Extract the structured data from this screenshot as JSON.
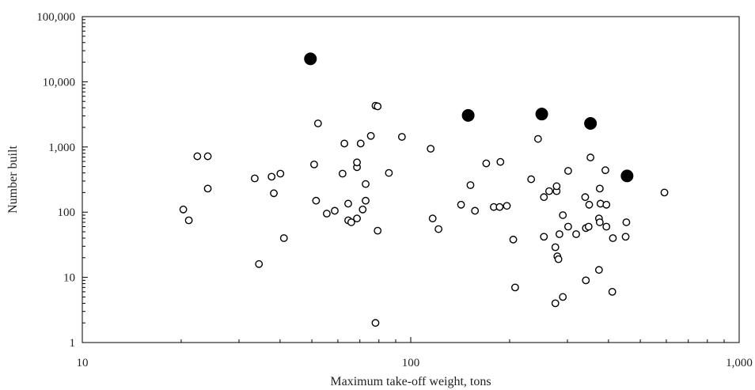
{
  "chart_data": {
    "type": "scatter",
    "title": "",
    "xlabel": "Maximum take-off weight, tons",
    "ylabel": "Number built",
    "x_scale": "log",
    "y_scale": "log",
    "xlim": [
      10,
      1000
    ],
    "ylim": [
      1,
      100000
    ],
    "x_ticks": [
      10,
      100,
      1000
    ],
    "x_tick_labels": [
      "10",
      "100",
      "1,000"
    ],
    "y_ticks": [
      1,
      10,
      100,
      1000,
      10000,
      100000
    ],
    "y_tick_labels": [
      "1",
      "10",
      "100",
      "1,000",
      "10,000",
      "100,000"
    ],
    "grid": false,
    "legend": "none",
    "colors": {
      "filled_marker": "#000000",
      "open_marker_stroke": "#000000",
      "open_marker_fill": "#ffffff"
    },
    "series": [
      {
        "marker": "open-circle",
        "points": [
          {
            "x": 20.3,
            "y": 110
          },
          {
            "x": 21.1,
            "y": 75
          },
          {
            "x": 22.4,
            "y": 720
          },
          {
            "x": 24.1,
            "y": 720
          },
          {
            "x": 24.1,
            "y": 230
          },
          {
            "x": 33.5,
            "y": 330
          },
          {
            "x": 34.5,
            "y": 16
          },
          {
            "x": 37.7,
            "y": 350
          },
          {
            "x": 38.3,
            "y": 195
          },
          {
            "x": 40.1,
            "y": 390
          },
          {
            "x": 41.1,
            "y": 40
          },
          {
            "x": 50.8,
            "y": 540
          },
          {
            "x": 51.5,
            "y": 150
          },
          {
            "x": 52.2,
            "y": 2300
          },
          {
            "x": 55.5,
            "y": 95
          },
          {
            "x": 58.7,
            "y": 105
          },
          {
            "x": 62.0,
            "y": 390
          },
          {
            "x": 62.8,
            "y": 1130
          },
          {
            "x": 64.5,
            "y": 75
          },
          {
            "x": 64.5,
            "y": 135
          },
          {
            "x": 65.9,
            "y": 70
          },
          {
            "x": 68.6,
            "y": 80
          },
          {
            "x": 68.6,
            "y": 490
          },
          {
            "x": 68.6,
            "y": 580
          },
          {
            "x": 70.4,
            "y": 1130
          },
          {
            "x": 71.4,
            "y": 110
          },
          {
            "x": 72.9,
            "y": 150
          },
          {
            "x": 72.9,
            "y": 270
          },
          {
            "x": 75.6,
            "y": 1480
          },
          {
            "x": 78.1,
            "y": 2
          },
          {
            "x": 78.1,
            "y": 4300
          },
          {
            "x": 79.3,
            "y": 4200
          },
          {
            "x": 79.3,
            "y": 52
          },
          {
            "x": 85.8,
            "y": 400
          },
          {
            "x": 94.0,
            "y": 1430
          },
          {
            "x": 115.0,
            "y": 940
          },
          {
            "x": 116.6,
            "y": 80
          },
          {
            "x": 121.5,
            "y": 55
          },
          {
            "x": 142.3,
            "y": 130
          },
          {
            "x": 152.0,
            "y": 260
          },
          {
            "x": 156.9,
            "y": 105
          },
          {
            "x": 169.8,
            "y": 560
          },
          {
            "x": 179.0,
            "y": 120
          },
          {
            "x": 186.5,
            "y": 120
          },
          {
            "x": 187.5,
            "y": 590
          },
          {
            "x": 196.2,
            "y": 125
          },
          {
            "x": 205.2,
            "y": 38
          },
          {
            "x": 207.9,
            "y": 7
          },
          {
            "x": 232.6,
            "y": 320
          },
          {
            "x": 244.1,
            "y": 1330
          },
          {
            "x": 254.4,
            "y": 170
          },
          {
            "x": 254.4,
            "y": 42
          },
          {
            "x": 263.9,
            "y": 210
          },
          {
            "x": 275.6,
            "y": 29
          },
          {
            "x": 275.6,
            "y": 4
          },
          {
            "x": 278.1,
            "y": 210
          },
          {
            "x": 278.1,
            "y": 250
          },
          {
            "x": 279.5,
            "y": 21
          },
          {
            "x": 281.7,
            "y": 19
          },
          {
            "x": 283.6,
            "y": 46
          },
          {
            "x": 290.5,
            "y": 90
          },
          {
            "x": 290.5,
            "y": 5
          },
          {
            "x": 301.5,
            "y": 60
          },
          {
            "x": 301.5,
            "y": 430
          },
          {
            "x": 318.9,
            "y": 46
          },
          {
            "x": 339.8,
            "y": 170
          },
          {
            "x": 341.4,
            "y": 57
          },
          {
            "x": 341.4,
            "y": 9
          },
          {
            "x": 348.1,
            "y": 60
          },
          {
            "x": 349.4,
            "y": 130
          },
          {
            "x": 352.6,
            "y": 690
          },
          {
            "x": 374.2,
            "y": 80
          },
          {
            "x": 374.2,
            "y": 13
          },
          {
            "x": 376.3,
            "y": 230
          },
          {
            "x": 376.3,
            "y": 70
          },
          {
            "x": 378.2,
            "y": 135
          },
          {
            "x": 391.4,
            "y": 440
          },
          {
            "x": 394.2,
            "y": 60
          },
          {
            "x": 394.2,
            "y": 130
          },
          {
            "x": 410.8,
            "y": 6
          },
          {
            "x": 412.6,
            "y": 40
          },
          {
            "x": 451.1,
            "y": 42
          },
          {
            "x": 453.4,
            "y": 70
          },
          {
            "x": 592.1,
            "y": 200
          }
        ]
      },
      {
        "marker": "filled-circle",
        "points": [
          {
            "x": 49.5,
            "y": 22500
          },
          {
            "x": 149.6,
            "y": 3050
          },
          {
            "x": 250.6,
            "y": 3200
          },
          {
            "x": 352.6,
            "y": 2300
          },
          {
            "x": 455.7,
            "y": 360
          }
        ]
      }
    ]
  }
}
